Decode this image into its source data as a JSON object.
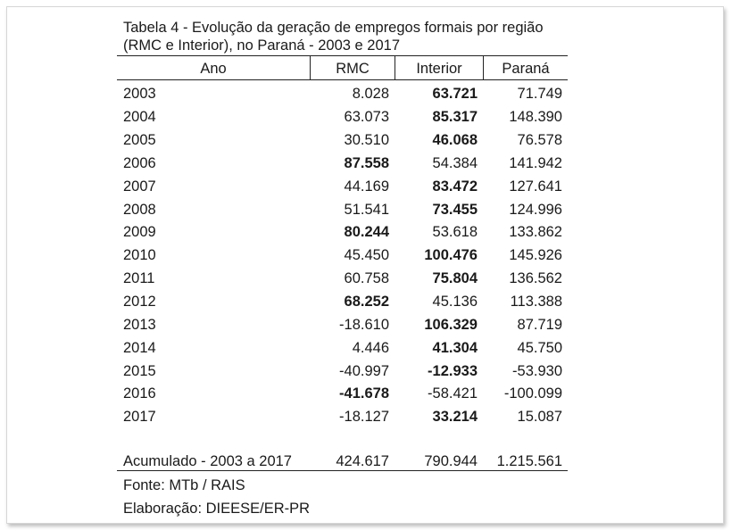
{
  "title_line1": "Tabela 4 - Evolução da geração de empregos formais por região",
  "title_line2": "(RMC e Interior), no Paraná - 2003 e 2017",
  "headers": [
    "Ano",
    "RMC",
    "Interior",
    "Paraná"
  ],
  "rows": [
    {
      "ano": "2003",
      "rmc": "8.028",
      "interior": "63.721",
      "parana": "71.749",
      "bold": "interior"
    },
    {
      "ano": "2004",
      "rmc": "63.073",
      "interior": "85.317",
      "parana": "148.390",
      "bold": "interior"
    },
    {
      "ano": "2005",
      "rmc": "30.510",
      "interior": "46.068",
      "parana": "76.578",
      "bold": "interior"
    },
    {
      "ano": "2006",
      "rmc": "87.558",
      "interior": "54.384",
      "parana": "141.942",
      "bold": "rmc"
    },
    {
      "ano": "2007",
      "rmc": "44.169",
      "interior": "83.472",
      "parana": "127.641",
      "bold": "interior"
    },
    {
      "ano": "2008",
      "rmc": "51.541",
      "interior": "73.455",
      "parana": "124.996",
      "bold": "interior"
    },
    {
      "ano": "2009",
      "rmc": "80.244",
      "interior": "53.618",
      "parana": "133.862",
      "bold": "rmc"
    },
    {
      "ano": "2010",
      "rmc": "45.450",
      "interior": "100.476",
      "parana": "145.926",
      "bold": "interior"
    },
    {
      "ano": "2011",
      "rmc": "60.758",
      "interior": "75.804",
      "parana": "136.562",
      "bold": "interior"
    },
    {
      "ano": "2012",
      "rmc": "68.252",
      "interior": "45.136",
      "parana": "113.388",
      "bold": "rmc"
    },
    {
      "ano": "2013",
      "rmc": "-18.610",
      "interior": "106.329",
      "parana": "87.719",
      "bold": "interior"
    },
    {
      "ano": "2014",
      "rmc": "4.446",
      "interior": "41.304",
      "parana": "45.750",
      "bold": "interior"
    },
    {
      "ano": "2015",
      "rmc": "-40.997",
      "interior": "-12.933",
      "parana": "-53.930",
      "bold": "interior"
    },
    {
      "ano": "2016",
      "rmc": "-41.678",
      "interior": "-58.421",
      "parana": "-100.099",
      "bold": "rmc"
    },
    {
      "ano": "2017",
      "rmc": "-18.127",
      "interior": "33.214",
      "parana": "15.087",
      "bold": "interior"
    }
  ],
  "total": {
    "label": "Acumulado - 2003 a 2017",
    "rmc": "424.617",
    "interior": "790.944",
    "parana": "1.215.561"
  },
  "source": "Fonte: MTb / RAIS",
  "credits": "Elaboração: DIEESE/ER-PR"
}
